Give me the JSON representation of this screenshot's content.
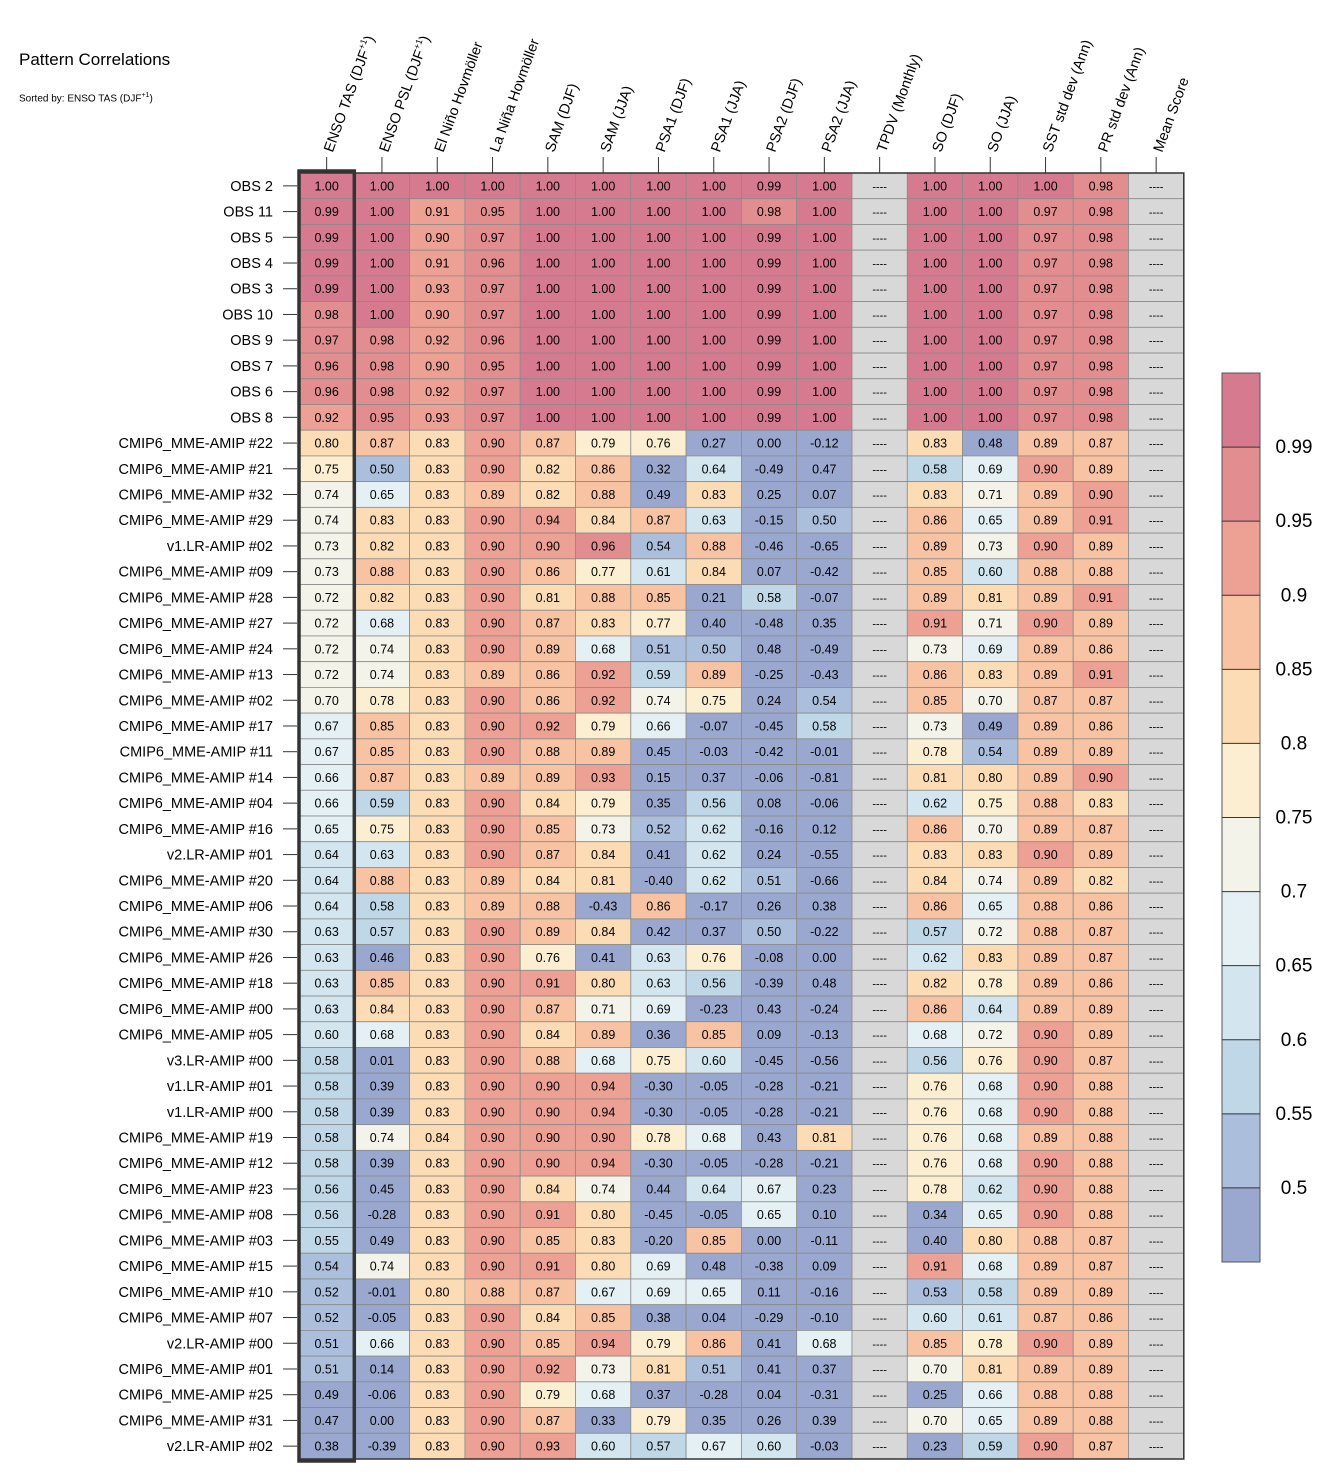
{
  "title": "Pattern Correlations",
  "subtitle": "Sorted by: ENSO TAS (DJF+1)",
  "chart_data": {
    "type": "heatmap",
    "columns": [
      "ENSO TAS (DJF+1)",
      "ENSO PSL (DJF+1)",
      "El Niño Hovmöller",
      "La Niña Hovmöller",
      "SAM (DJF)",
      "SAM (JJA)",
      "PSA1 (DJF)",
      "PSA1 (JJA)",
      "PSA2 (DJF)",
      "PSA2 (JJA)",
      "TPDV (Monthly)",
      "SO (DJF)",
      "SO (JJA)",
      "SST std dev (Ann)",
      "PR std dev (Ann)",
      "Mean Score"
    ],
    "highlighted_column": "ENSO TAS (DJF+1)",
    "missing_label": "----",
    "rows": [
      {
        "label": "OBS 2",
        "values": [
          1.0,
          1.0,
          1.0,
          1.0,
          1.0,
          1.0,
          1.0,
          1.0,
          0.99,
          1.0,
          null,
          1.0,
          1.0,
          1.0,
          0.98,
          null
        ]
      },
      {
        "label": "OBS 11",
        "values": [
          0.99,
          1.0,
          0.91,
          0.95,
          1.0,
          1.0,
          1.0,
          1.0,
          0.98,
          1.0,
          null,
          1.0,
          1.0,
          0.97,
          0.98,
          null
        ]
      },
      {
        "label": "OBS 5",
        "values": [
          0.99,
          1.0,
          0.9,
          0.97,
          1.0,
          1.0,
          1.0,
          1.0,
          0.99,
          1.0,
          null,
          1.0,
          1.0,
          0.97,
          0.98,
          null
        ]
      },
      {
        "label": "OBS 4",
        "values": [
          0.99,
          1.0,
          0.91,
          0.96,
          1.0,
          1.0,
          1.0,
          1.0,
          0.99,
          1.0,
          null,
          1.0,
          1.0,
          0.97,
          0.98,
          null
        ]
      },
      {
        "label": "OBS 3",
        "values": [
          0.99,
          1.0,
          0.93,
          0.97,
          1.0,
          1.0,
          1.0,
          1.0,
          0.99,
          1.0,
          null,
          1.0,
          1.0,
          0.97,
          0.98,
          null
        ]
      },
      {
        "label": "OBS 10",
        "values": [
          0.98,
          1.0,
          0.9,
          0.97,
          1.0,
          1.0,
          1.0,
          1.0,
          0.99,
          1.0,
          null,
          1.0,
          1.0,
          0.97,
          0.98,
          null
        ]
      },
      {
        "label": "OBS 9",
        "values": [
          0.97,
          0.98,
          0.92,
          0.96,
          1.0,
          1.0,
          1.0,
          1.0,
          0.99,
          1.0,
          null,
          1.0,
          1.0,
          0.97,
          0.98,
          null
        ]
      },
      {
        "label": "OBS 7",
        "values": [
          0.96,
          0.98,
          0.9,
          0.95,
          1.0,
          1.0,
          1.0,
          1.0,
          0.99,
          1.0,
          null,
          1.0,
          1.0,
          0.97,
          0.98,
          null
        ]
      },
      {
        "label": "OBS 6",
        "values": [
          0.96,
          0.98,
          0.92,
          0.97,
          1.0,
          1.0,
          1.0,
          1.0,
          0.99,
          1.0,
          null,
          1.0,
          1.0,
          0.97,
          0.98,
          null
        ]
      },
      {
        "label": "OBS 8",
        "values": [
          0.92,
          0.95,
          0.93,
          0.97,
          1.0,
          1.0,
          1.0,
          1.0,
          0.99,
          1.0,
          null,
          1.0,
          1.0,
          0.97,
          0.98,
          null
        ]
      },
      {
        "label": "CMIP6_MME-AMIP  #22",
        "values": [
          0.8,
          0.87,
          0.83,
          0.9,
          0.87,
          0.79,
          0.76,
          0.27,
          -0.0,
          -0.12,
          null,
          0.83,
          0.48,
          0.89,
          0.87,
          null
        ]
      },
      {
        "label": "CMIP6_MME-AMIP  #21",
        "values": [
          0.75,
          0.5,
          0.83,
          0.9,
          0.82,
          0.86,
          0.32,
          0.64,
          -0.49,
          0.47,
          null,
          0.58,
          0.69,
          0.9,
          0.89,
          null
        ]
      },
      {
        "label": "CMIP6_MME-AMIP  #32",
        "values": [
          0.74,
          0.65,
          0.83,
          0.89,
          0.82,
          0.88,
          0.49,
          0.83,
          0.25,
          0.07,
          null,
          0.83,
          0.71,
          0.89,
          0.9,
          null
        ]
      },
      {
        "label": "CMIP6_MME-AMIP  #29",
        "values": [
          0.74,
          0.83,
          0.83,
          0.9,
          0.94,
          0.84,
          0.87,
          0.63,
          -0.15,
          0.5,
          null,
          0.86,
          0.65,
          0.89,
          0.91,
          null
        ]
      },
      {
        "label": "v1.LR-AMIP  #02",
        "values": [
          0.73,
          0.82,
          0.83,
          0.9,
          0.9,
          0.96,
          0.54,
          0.88,
          -0.46,
          -0.65,
          null,
          0.89,
          0.73,
          0.9,
          0.89,
          null
        ]
      },
      {
        "label": "CMIP6_MME-AMIP  #09",
        "values": [
          0.73,
          0.88,
          0.83,
          0.9,
          0.86,
          0.77,
          0.61,
          0.84,
          0.07,
          -0.42,
          null,
          0.85,
          0.6,
          0.88,
          0.88,
          null
        ]
      },
      {
        "label": "CMIP6_MME-AMIP  #28",
        "values": [
          0.72,
          0.82,
          0.83,
          0.9,
          0.81,
          0.88,
          0.85,
          0.21,
          0.58,
          -0.07,
          null,
          0.89,
          0.81,
          0.89,
          0.91,
          null
        ]
      },
      {
        "label": "CMIP6_MME-AMIP  #27",
        "values": [
          0.72,
          0.68,
          0.83,
          0.9,
          0.87,
          0.83,
          0.77,
          0.4,
          -0.48,
          0.35,
          null,
          0.91,
          0.71,
          0.9,
          0.89,
          null
        ]
      },
      {
        "label": "CMIP6_MME-AMIP  #24",
        "values": [
          0.72,
          0.74,
          0.83,
          0.9,
          0.89,
          0.68,
          0.51,
          0.5,
          0.48,
          -0.49,
          null,
          0.73,
          0.69,
          0.89,
          0.86,
          null
        ]
      },
      {
        "label": "CMIP6_MME-AMIP  #13",
        "values": [
          0.72,
          0.74,
          0.83,
          0.89,
          0.86,
          0.92,
          0.59,
          0.89,
          -0.25,
          -0.43,
          null,
          0.86,
          0.83,
          0.89,
          0.91,
          null
        ]
      },
      {
        "label": "CMIP6_MME-AMIP  #02",
        "values": [
          0.7,
          0.78,
          0.83,
          0.9,
          0.86,
          0.92,
          0.74,
          0.75,
          0.24,
          0.54,
          null,
          0.85,
          0.7,
          0.87,
          0.87,
          null
        ]
      },
      {
        "label": "CMIP6_MME-AMIP  #17",
        "values": [
          0.67,
          0.85,
          0.83,
          0.9,
          0.92,
          0.79,
          0.66,
          -0.07,
          -0.45,
          0.58,
          null,
          0.73,
          0.49,
          0.89,
          0.86,
          null
        ]
      },
      {
        "label": "CMIP6_MME-AMIP  #11",
        "values": [
          0.67,
          0.85,
          0.83,
          0.9,
          0.88,
          0.89,
          0.45,
          -0.03,
          -0.42,
          -0.01,
          null,
          0.78,
          0.54,
          0.89,
          0.89,
          null
        ]
      },
      {
        "label": "CMIP6_MME-AMIP  #14",
        "values": [
          0.66,
          0.87,
          0.83,
          0.89,
          0.89,
          0.93,
          0.15,
          0.37,
          -0.06,
          -0.81,
          null,
          0.81,
          0.8,
          0.89,
          0.9,
          null
        ]
      },
      {
        "label": "CMIP6_MME-AMIP  #04",
        "values": [
          0.66,
          0.59,
          0.83,
          0.9,
          0.84,
          0.79,
          0.35,
          0.56,
          0.08,
          -0.06,
          null,
          0.62,
          0.75,
          0.88,
          0.83,
          null
        ]
      },
      {
        "label": "CMIP6_MME-AMIP  #16",
        "values": [
          0.65,
          0.75,
          0.83,
          0.9,
          0.85,
          0.73,
          0.52,
          0.62,
          -0.16,
          0.12,
          null,
          0.86,
          0.7,
          0.89,
          0.87,
          null
        ]
      },
      {
        "label": "v2.LR-AMIP  #01",
        "values": [
          0.64,
          0.63,
          0.83,
          0.9,
          0.87,
          0.84,
          0.41,
          0.62,
          0.24,
          -0.55,
          null,
          0.83,
          0.83,
          0.9,
          0.89,
          null
        ]
      },
      {
        "label": "CMIP6_MME-AMIP  #20",
        "values": [
          0.64,
          0.88,
          0.83,
          0.89,
          0.84,
          0.81,
          -0.4,
          0.62,
          0.51,
          -0.66,
          null,
          0.84,
          0.74,
          0.89,
          0.82,
          null
        ]
      },
      {
        "label": "CMIP6_MME-AMIP  #06",
        "values": [
          0.64,
          0.58,
          0.83,
          0.89,
          0.88,
          -0.43,
          0.86,
          -0.17,
          0.26,
          0.38,
          null,
          0.86,
          0.65,
          0.88,
          0.86,
          null
        ]
      },
      {
        "label": "CMIP6_MME-AMIP  #30",
        "values": [
          0.63,
          0.57,
          0.83,
          0.9,
          0.89,
          0.84,
          0.42,
          0.37,
          0.5,
          -0.22,
          null,
          0.57,
          0.72,
          0.88,
          0.87,
          null
        ]
      },
      {
        "label": "CMIP6_MME-AMIP  #26",
        "values": [
          0.63,
          0.46,
          0.83,
          0.9,
          0.76,
          0.41,
          0.63,
          0.76,
          -0.08,
          -0.0,
          null,
          0.62,
          0.83,
          0.89,
          0.87,
          null
        ]
      },
      {
        "label": "CMIP6_MME-AMIP  #18",
        "values": [
          0.63,
          0.85,
          0.83,
          0.9,
          0.91,
          0.8,
          0.63,
          0.56,
          -0.39,
          0.48,
          null,
          0.82,
          0.78,
          0.89,
          0.86,
          null
        ]
      },
      {
        "label": "CMIP6_MME-AMIP  #00",
        "values": [
          0.63,
          0.84,
          0.83,
          0.9,
          0.87,
          0.71,
          0.69,
          -0.23,
          0.43,
          -0.24,
          null,
          0.86,
          0.64,
          0.89,
          0.89,
          null
        ]
      },
      {
        "label": "CMIP6_MME-AMIP  #05",
        "values": [
          0.6,
          0.68,
          0.83,
          0.9,
          0.84,
          0.89,
          0.36,
          0.85,
          0.09,
          -0.13,
          null,
          0.68,
          0.72,
          0.9,
          0.89,
          null
        ]
      },
      {
        "label": "v3.LR-AMIP  #00",
        "values": [
          0.58,
          0.01,
          0.83,
          0.9,
          0.88,
          0.68,
          0.75,
          0.6,
          -0.45,
          -0.56,
          null,
          0.56,
          0.76,
          0.9,
          0.87,
          null
        ]
      },
      {
        "label": "v1.LR-AMIP  #01",
        "values": [
          0.58,
          0.39,
          0.83,
          0.9,
          0.9,
          0.94,
          -0.3,
          -0.05,
          -0.28,
          -0.21,
          null,
          0.76,
          0.68,
          0.9,
          0.88,
          null
        ]
      },
      {
        "label": "v1.LR-AMIP  #00",
        "values": [
          0.58,
          0.39,
          0.83,
          0.9,
          0.9,
          0.94,
          -0.3,
          -0.05,
          -0.28,
          -0.21,
          null,
          0.76,
          0.68,
          0.9,
          0.88,
          null
        ]
      },
      {
        "label": "CMIP6_MME-AMIP  #19",
        "values": [
          0.58,
          0.74,
          0.84,
          0.9,
          0.9,
          0.9,
          0.78,
          0.68,
          0.43,
          0.81,
          null,
          0.76,
          0.68,
          0.89,
          0.88,
          null
        ]
      },
      {
        "label": "CMIP6_MME-AMIP  #12",
        "values": [
          0.58,
          0.39,
          0.83,
          0.9,
          0.9,
          0.94,
          -0.3,
          -0.05,
          -0.28,
          -0.21,
          null,
          0.76,
          0.68,
          0.9,
          0.88,
          null
        ]
      },
      {
        "label": "CMIP6_MME-AMIP  #23",
        "values": [
          0.56,
          0.45,
          0.83,
          0.9,
          0.84,
          0.74,
          0.44,
          0.64,
          0.67,
          0.23,
          null,
          0.78,
          0.62,
          0.9,
          0.88,
          null
        ]
      },
      {
        "label": "CMIP6_MME-AMIP  #08",
        "values": [
          0.56,
          -0.28,
          0.83,
          0.9,
          0.91,
          0.8,
          -0.45,
          -0.05,
          0.65,
          0.1,
          null,
          0.34,
          0.65,
          0.9,
          0.88,
          null
        ]
      },
      {
        "label": "CMIP6_MME-AMIP  #03",
        "values": [
          0.55,
          0.49,
          0.83,
          0.9,
          0.85,
          0.83,
          -0.2,
          0.85,
          -0.0,
          -0.11,
          null,
          0.4,
          0.8,
          0.88,
          0.87,
          null
        ]
      },
      {
        "label": "CMIP6_MME-AMIP  #15",
        "values": [
          0.54,
          0.74,
          0.83,
          0.9,
          0.91,
          0.8,
          0.69,
          0.48,
          -0.38,
          0.09,
          null,
          0.91,
          0.68,
          0.89,
          0.87,
          null
        ]
      },
      {
        "label": "CMIP6_MME-AMIP  #10",
        "values": [
          0.52,
          -0.01,
          0.8,
          0.88,
          0.87,
          0.67,
          0.69,
          0.65,
          0.11,
          -0.16,
          null,
          0.53,
          0.58,
          0.89,
          0.89,
          null
        ]
      },
      {
        "label": "CMIP6_MME-AMIP  #07",
        "values": [
          0.52,
          -0.05,
          0.83,
          0.9,
          0.84,
          0.85,
          0.38,
          0.04,
          -0.29,
          -0.1,
          null,
          0.6,
          0.61,
          0.87,
          0.86,
          null
        ]
      },
      {
        "label": "v2.LR-AMIP  #00",
        "values": [
          0.51,
          0.66,
          0.83,
          0.9,
          0.85,
          0.94,
          0.79,
          0.86,
          0.41,
          0.68,
          null,
          0.85,
          0.78,
          0.9,
          0.89,
          null
        ]
      },
      {
        "label": "CMIP6_MME-AMIP  #01",
        "values": [
          0.51,
          0.14,
          0.83,
          0.9,
          0.92,
          0.73,
          0.81,
          0.51,
          0.41,
          0.37,
          null,
          0.7,
          0.81,
          0.89,
          0.89,
          null
        ]
      },
      {
        "label": "CMIP6_MME-AMIP  #25",
        "values": [
          0.49,
          -0.06,
          0.83,
          0.9,
          0.79,
          0.68,
          0.37,
          -0.28,
          0.04,
          -0.31,
          null,
          0.25,
          0.66,
          0.88,
          0.88,
          null
        ]
      },
      {
        "label": "CMIP6_MME-AMIP  #31",
        "values": [
          0.47,
          0.0,
          0.83,
          0.9,
          0.87,
          0.33,
          0.79,
          0.35,
          0.26,
          0.39,
          null,
          0.7,
          0.65,
          0.89,
          0.88,
          null
        ]
      },
      {
        "label": "v2.LR-AMIP  #02",
        "values": [
          0.38,
          -0.39,
          0.83,
          0.9,
          0.93,
          0.6,
          0.57,
          0.67,
          0.6,
          -0.03,
          null,
          0.23,
          0.59,
          0.9,
          0.87,
          null
        ]
      }
    ],
    "colorbar": {
      "ticks": [
        "0.99",
        "0.95",
        "0.9",
        "0.85",
        "0.8",
        "0.75",
        "0.7",
        "0.65",
        "0.6",
        "0.55",
        "0.5"
      ],
      "bins": [
        0.5,
        0.55,
        0.6,
        0.65,
        0.7,
        0.75,
        0.8,
        0.85,
        0.9,
        0.95,
        0.99
      ],
      "colors_low_to_high": [
        "#9aa8d0",
        "#abbfdd",
        "#c0d7e8",
        "#d3e6ef",
        "#e5f0f4",
        "#f3f3ea",
        "#fcefd1",
        "#fbdcb5",
        "#f7c3a3",
        "#eda094",
        "#e28d8f",
        "#d57a8f"
      ],
      "missing_color": "#d8d8d8"
    }
  }
}
